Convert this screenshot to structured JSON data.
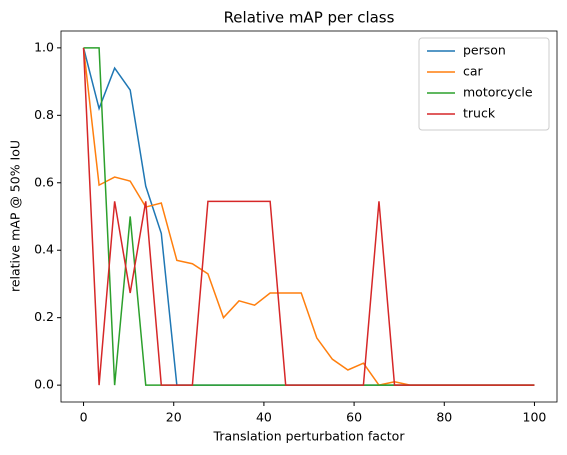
{
  "chart_data": {
    "type": "line",
    "title": "Relative mAP per class",
    "x_label": "Translation perturbation factor",
    "y_label": "relative mAP @ 50% IoU",
    "x": [
      0,
      3.448,
      6.897,
      10.345,
      13.793,
      17.241,
      20.69,
      24.138,
      27.586,
      31.034,
      34.483,
      37.931,
      41.379,
      44.828,
      48.276,
      51.724,
      55.172,
      58.621,
      62.069,
      65.517,
      68.966,
      72.414,
      75.862,
      79.31,
      82.759,
      86.207,
      89.655,
      93.103,
      96.552,
      100
    ],
    "series": [
      {
        "name": "person",
        "color": "#1f77b4",
        "values": [
          1.0,
          0.82,
          0.94,
          0.875,
          0.59,
          0.45,
          0,
          0,
          0,
          0,
          0,
          0,
          0,
          0,
          0,
          0,
          0,
          0,
          0,
          0,
          0,
          0,
          0,
          0,
          0,
          0,
          0,
          0,
          0,
          0
        ]
      },
      {
        "name": "car",
        "color": "#ff7f0e",
        "values": [
          1.0,
          0.593,
          0.617,
          0.605,
          0.528,
          0.54,
          0.37,
          0.36,
          0.33,
          0.2,
          0.25,
          0.237,
          0.273,
          0.273,
          0.273,
          0.14,
          0.077,
          0.045,
          0.065,
          0,
          0.01,
          0,
          0,
          0,
          0,
          0,
          0,
          0,
          0,
          0
        ]
      },
      {
        "name": "motorcycle",
        "color": "#2ca02c",
        "values": [
          1.0,
          1.0,
          0,
          0.5,
          0,
          0,
          0,
          0,
          0,
          0,
          0,
          0,
          0,
          0,
          0,
          0,
          0,
          0,
          0,
          0,
          0,
          0,
          0,
          0,
          0,
          0,
          0,
          0,
          0,
          0
        ]
      },
      {
        "name": "truck",
        "color": "#d62728",
        "values": [
          1.0,
          0,
          0.545,
          0.273,
          0.545,
          0,
          0,
          0,
          0.545,
          0.545,
          0.545,
          0.545,
          0.545,
          0,
          0,
          0,
          0,
          0,
          0,
          0.545,
          0,
          0,
          0,
          0,
          0,
          0,
          0,
          0,
          0,
          0
        ]
      }
    ],
    "xlim": [
      -5,
      105
    ],
    "ylim": [
      -0.05,
      1.05
    ],
    "xticks": [
      0,
      20,
      40,
      60,
      80,
      100
    ],
    "yticks": [
      {
        "value": 0,
        "label": "0.0"
      },
      {
        "value": 0.2,
        "label": "0.2"
      },
      {
        "value": 0.4,
        "label": "0.4"
      },
      {
        "value": 0.6,
        "label": "0.6"
      },
      {
        "value": 0.8,
        "label": "0.8"
      },
      {
        "value": 1,
        "label": "1.0"
      }
    ],
    "legend": "upper right"
  }
}
